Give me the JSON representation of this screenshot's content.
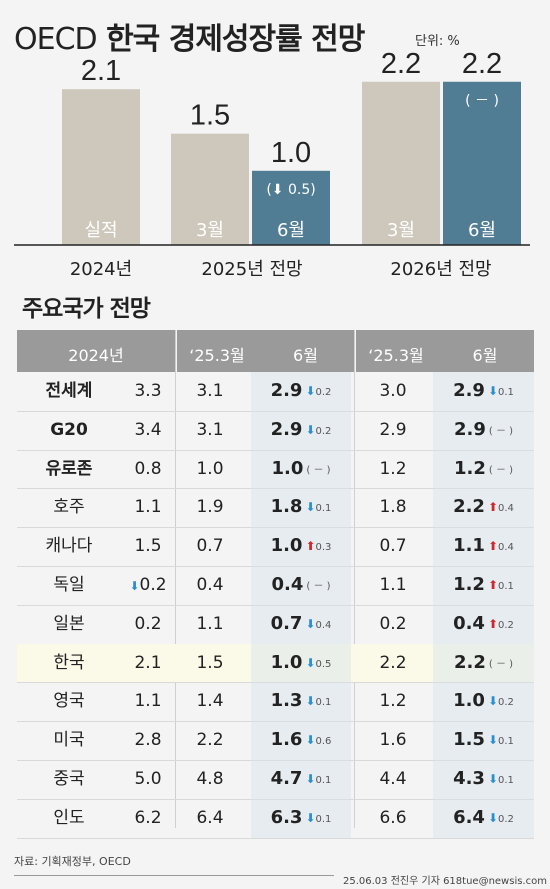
{
  "title_prefix": "OECD",
  "title_main": "한국 경제성장률 전망",
  "unit": "단위: %",
  "chart_data": {
    "type": "bar",
    "title": "OECD 한국 경제성장률 전망",
    "unit": "단위: %",
    "groups": [
      "2024년",
      "2025년 전망",
      "2026년 전망"
    ],
    "bars": [
      {
        "group": "2024년",
        "label": "실적",
        "value": 2.1,
        "color": "#cdc8bb"
      },
      {
        "group": "2025년 전망",
        "label": "3월",
        "value": 1.5,
        "color": "#cdc8bb"
      },
      {
        "group": "2025년 전망",
        "label": "6월",
        "value": 1.0,
        "color": "#517d94",
        "change": "0.5",
        "direction": "down"
      },
      {
        "group": "2026년 전망",
        "label": "3월",
        "value": 2.2,
        "color": "#cdc8bb"
      },
      {
        "group": "2026년 전망",
        "label": "6월",
        "value": 2.2,
        "color": "#517d94",
        "change": "－",
        "direction": "none"
      }
    ],
    "ylim": [
      0,
      2.5
    ]
  },
  "table_title": "주요국가 전망",
  "table": {
    "headers": {
      "c24": "2024년",
      "c253": "‘25.3월",
      "c256": "6월",
      "c263": "‘25.3월",
      "c266": "6월"
    },
    "rows": [
      {
        "name": "전세계",
        "bold": true,
        "y2024": "3.3",
        "m25": "3.1",
        "j25": "2.9",
        "j25c": "0.2",
        "j25d": "down",
        "m26": "3.0",
        "j26": "2.9",
        "j26c": "0.1",
        "j26d": "down"
      },
      {
        "name": "G20",
        "bold": true,
        "y2024": "3.4",
        "m25": "3.1",
        "j25": "2.9",
        "j25c": "0.2",
        "j25d": "down",
        "m26": "2.9",
        "j26": "2.9",
        "j26c": "－",
        "j26d": "none"
      },
      {
        "name": "유로존",
        "bold": true,
        "y2024": "0.8",
        "m25": "1.0",
        "j25": "1.0",
        "j25c": "－",
        "j25d": "none",
        "m26": "1.2",
        "j26": "1.2",
        "j26c": "－",
        "j26d": "none"
      },
      {
        "name": "호주",
        "y2024": "1.1",
        "m25": "1.9",
        "j25": "1.8",
        "j25c": "0.1",
        "j25d": "down",
        "m26": "1.8",
        "j26": "2.2",
        "j26c": "0.4",
        "j26d": "up"
      },
      {
        "name": "캐나다",
        "y2024": "1.5",
        "m25": "0.7",
        "j25": "1.0",
        "j25c": "0.3",
        "j25d": "up",
        "m26": "0.7",
        "j26": "1.1",
        "j26c": "0.4",
        "j26d": "up"
      },
      {
        "name": "독일",
        "y2024": "0.2",
        "y2024d": "down",
        "m25": "0.4",
        "j25": "0.4",
        "j25c": "－",
        "j25d": "none",
        "m26": "1.1",
        "j26": "1.2",
        "j26c": "0.1",
        "j26d": "up"
      },
      {
        "name": "일본",
        "y2024": "0.2",
        "m25": "1.1",
        "j25": "0.7",
        "j25c": "0.4",
        "j25d": "down",
        "m26": "0.2",
        "j26": "0.4",
        "j26c": "0.2",
        "j26d": "up"
      },
      {
        "name": "한국",
        "highlight": true,
        "y2024": "2.1",
        "m25": "1.5",
        "j25": "1.0",
        "j25c": "0.5",
        "j25d": "down",
        "m26": "2.2",
        "j26": "2.2",
        "j26c": "－",
        "j26d": "none"
      },
      {
        "name": "영국",
        "y2024": "1.1",
        "m25": "1.4",
        "j25": "1.3",
        "j25c": "0.1",
        "j25d": "down",
        "m26": "1.2",
        "j26": "1.0",
        "j26c": "0.2",
        "j26d": "down"
      },
      {
        "name": "미국",
        "y2024": "2.8",
        "m25": "2.2",
        "j25": "1.6",
        "j25c": "0.6",
        "j25d": "down",
        "m26": "1.6",
        "j26": "1.5",
        "j26c": "0.1",
        "j26d": "down"
      },
      {
        "name": "중국",
        "y2024": "5.0",
        "m25": "4.8",
        "j25": "4.7",
        "j25c": "0.1",
        "j25d": "down",
        "m26": "4.4",
        "j26": "4.3",
        "j26c": "0.1",
        "j26d": "down"
      },
      {
        "name": "인도",
        "y2024": "6.2",
        "m25": "6.4",
        "j25": "6.3",
        "j25c": "0.1",
        "j25d": "down",
        "m26": "6.6",
        "j26": "6.4",
        "j26c": "0.2",
        "j26d": "down"
      }
    ]
  },
  "source": "자료: 기획재정부, OECD",
  "credit": "25.06.03 전진우 기자 618tue@newsis.com",
  "colors": {
    "neutral_bar": "#cdc8bb",
    "highlight_bar": "#517d94",
    "down_arrow": "#2a8fd0",
    "up_arrow": "#d2272a"
  }
}
